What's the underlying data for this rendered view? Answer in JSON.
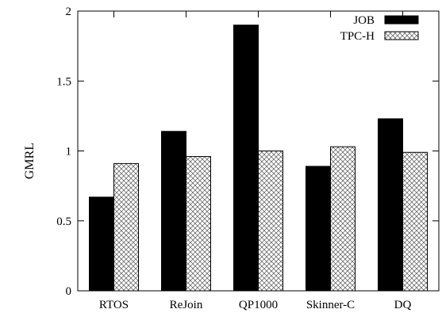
{
  "chart_data": {
    "type": "bar",
    "ylabel": "GMRL",
    "xlabel": "",
    "ylim": [
      0,
      2
    ],
    "yticks": [
      "0",
      "0.5",
      "1",
      "1.5",
      "2"
    ],
    "grid": false,
    "legend_position": "top-right",
    "categories": [
      "RTOS",
      "ReJoin",
      "QP1000",
      "Skinner-C",
      "DQ"
    ],
    "series": [
      {
        "name": "JOB",
        "fill": "solid",
        "color": "#000000",
        "values": [
          0.67,
          1.14,
          1.9,
          0.89,
          1.23
        ]
      },
      {
        "name": "TPC-H",
        "fill": "crosshatch",
        "color": "#ffffff",
        "values": [
          0.91,
          0.96,
          1.0,
          1.03,
          0.99
        ]
      }
    ]
  }
}
